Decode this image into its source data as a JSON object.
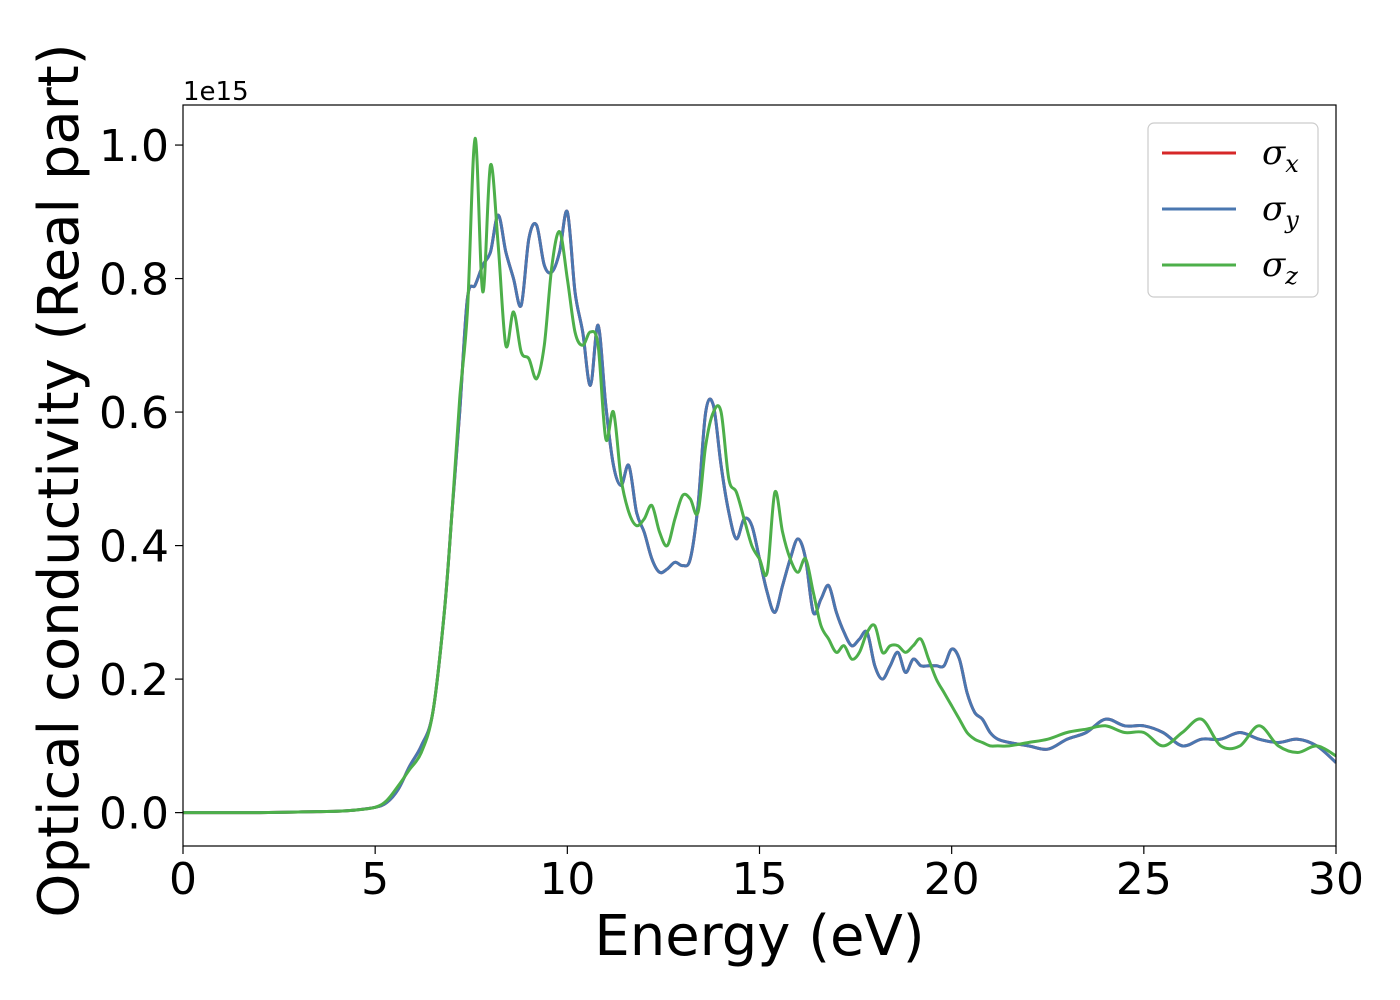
{
  "chart_data": {
    "type": "line",
    "title": "",
    "xlabel": "Energy (eV)",
    "ylabel": "Optical conductivity (Real part)",
    "y_offset_label": "1e15",
    "xlim": [
      0,
      30
    ],
    "ylim": [
      -0.05,
      1.06
    ],
    "xticks": [
      0,
      5,
      10,
      15,
      20,
      25,
      30
    ],
    "yticks": [
      0.0,
      0.2,
      0.4,
      0.6,
      0.8,
      1.0
    ],
    "xtick_labels": [
      "0",
      "5",
      "10",
      "15",
      "20",
      "25",
      "30"
    ],
    "ytick_labels": [
      "0.0",
      "0.2",
      "0.4",
      "0.6",
      "0.8",
      "1.0"
    ],
    "grid": false,
    "legend_position": "top-right",
    "series": [
      {
        "name": "σx",
        "symbol": "σ",
        "subscript": "x",
        "color": "#d62728",
        "x": [
          0,
          1,
          2,
          3,
          4,
          4.5,
          5,
          5.3,
          5.6,
          5.9,
          6.2,
          6.5,
          6.8,
          7.0,
          7.2,
          7.4,
          7.6,
          7.8,
          8.0,
          8.2,
          8.4,
          8.6,
          8.8,
          9.0,
          9.2,
          9.4,
          9.6,
          9.8,
          10.0,
          10.2,
          10.4,
          10.6,
          10.8,
          11.0,
          11.2,
          11.4,
          11.6,
          11.8,
          12.0,
          12.2,
          12.4,
          12.6,
          12.8,
          13.0,
          13.2,
          13.4,
          13.6,
          13.8,
          14.0,
          14.2,
          14.4,
          14.6,
          14.8,
          15.0,
          15.2,
          15.4,
          15.6,
          15.8,
          16.0,
          16.2,
          16.4,
          16.6,
          16.8,
          17.0,
          17.2,
          17.4,
          17.6,
          17.8,
          18.0,
          18.2,
          18.4,
          18.6,
          18.8,
          19.0,
          19.2,
          19.4,
          19.6,
          19.8,
          20.0,
          20.2,
          20.4,
          20.6,
          20.8,
          21.0,
          21.2,
          21.5,
          22.0,
          22.5,
          23.0,
          23.5,
          24.0,
          24.5,
          25.0,
          25.5,
          26.0,
          26.5,
          27.0,
          27.5,
          28.0,
          28.5,
          29.0,
          29.5,
          30.0
        ],
        "y": [
          0,
          0,
          0,
          0.001,
          0.002,
          0.004,
          0.008,
          0.015,
          0.035,
          0.07,
          0.1,
          0.15,
          0.3,
          0.45,
          0.6,
          0.77,
          0.79,
          0.82,
          0.84,
          0.895,
          0.84,
          0.8,
          0.76,
          0.86,
          0.88,
          0.82,
          0.81,
          0.84,
          0.9,
          0.78,
          0.72,
          0.64,
          0.73,
          0.61,
          0.52,
          0.49,
          0.52,
          0.45,
          0.42,
          0.38,
          0.36,
          0.365,
          0.375,
          0.37,
          0.38,
          0.46,
          0.6,
          0.61,
          0.52,
          0.45,
          0.41,
          0.44,
          0.43,
          0.38,
          0.33,
          0.3,
          0.34,
          0.38,
          0.41,
          0.38,
          0.3,
          0.32,
          0.34,
          0.3,
          0.27,
          0.25,
          0.26,
          0.27,
          0.22,
          0.2,
          0.22,
          0.24,
          0.21,
          0.23,
          0.22,
          0.22,
          0.22,
          0.22,
          0.245,
          0.23,
          0.18,
          0.15,
          0.14,
          0.12,
          0.11,
          0.105,
          0.1,
          0.095,
          0.11,
          0.12,
          0.14,
          0.13,
          0.13,
          0.12,
          0.1,
          0.11,
          0.11,
          0.12,
          0.11,
          0.105,
          0.11,
          0.1,
          0.075
        ]
      },
      {
        "name": "σy",
        "symbol": "σ",
        "subscript": "y",
        "color": "#4a77b0",
        "x": [
          0,
          1,
          2,
          3,
          4,
          4.5,
          5,
          5.3,
          5.6,
          5.9,
          6.2,
          6.5,
          6.8,
          7.0,
          7.2,
          7.4,
          7.6,
          7.8,
          8.0,
          8.2,
          8.4,
          8.6,
          8.8,
          9.0,
          9.2,
          9.4,
          9.6,
          9.8,
          10.0,
          10.2,
          10.4,
          10.6,
          10.8,
          11.0,
          11.2,
          11.4,
          11.6,
          11.8,
          12.0,
          12.2,
          12.4,
          12.6,
          12.8,
          13.0,
          13.2,
          13.4,
          13.6,
          13.8,
          14.0,
          14.2,
          14.4,
          14.6,
          14.8,
          15.0,
          15.2,
          15.4,
          15.6,
          15.8,
          16.0,
          16.2,
          16.4,
          16.6,
          16.8,
          17.0,
          17.2,
          17.4,
          17.6,
          17.8,
          18.0,
          18.2,
          18.4,
          18.6,
          18.8,
          19.0,
          19.2,
          19.4,
          19.6,
          19.8,
          20.0,
          20.2,
          20.4,
          20.6,
          20.8,
          21.0,
          21.2,
          21.5,
          22.0,
          22.5,
          23.0,
          23.5,
          24.0,
          24.5,
          25.0,
          25.5,
          26.0,
          26.5,
          27.0,
          27.5,
          28.0,
          28.5,
          29.0,
          29.5,
          30.0
        ],
        "y": [
          0,
          0,
          0,
          0.001,
          0.002,
          0.004,
          0.008,
          0.015,
          0.035,
          0.07,
          0.1,
          0.15,
          0.3,
          0.45,
          0.6,
          0.77,
          0.79,
          0.82,
          0.84,
          0.895,
          0.84,
          0.8,
          0.76,
          0.86,
          0.88,
          0.82,
          0.81,
          0.84,
          0.9,
          0.78,
          0.72,
          0.64,
          0.73,
          0.61,
          0.52,
          0.49,
          0.52,
          0.45,
          0.42,
          0.38,
          0.36,
          0.365,
          0.375,
          0.37,
          0.38,
          0.46,
          0.6,
          0.61,
          0.52,
          0.45,
          0.41,
          0.44,
          0.43,
          0.38,
          0.33,
          0.3,
          0.34,
          0.38,
          0.41,
          0.38,
          0.3,
          0.32,
          0.34,
          0.3,
          0.27,
          0.25,
          0.26,
          0.27,
          0.22,
          0.2,
          0.22,
          0.24,
          0.21,
          0.23,
          0.22,
          0.22,
          0.22,
          0.22,
          0.245,
          0.23,
          0.18,
          0.15,
          0.14,
          0.12,
          0.11,
          0.105,
          0.1,
          0.095,
          0.11,
          0.12,
          0.14,
          0.13,
          0.13,
          0.12,
          0.1,
          0.11,
          0.11,
          0.12,
          0.11,
          0.105,
          0.11,
          0.1,
          0.075
        ]
      },
      {
        "name": "σz",
        "symbol": "σ",
        "subscript": "z",
        "color": "#4daf4a",
        "x": [
          0,
          1,
          2,
          3,
          4,
          4.5,
          5,
          5.3,
          5.6,
          5.9,
          6.2,
          6.5,
          6.8,
          7.0,
          7.2,
          7.4,
          7.6,
          7.8,
          8.0,
          8.2,
          8.4,
          8.6,
          8.8,
          9.0,
          9.2,
          9.4,
          9.6,
          9.8,
          10.0,
          10.2,
          10.4,
          10.6,
          10.8,
          11.0,
          11.2,
          11.4,
          11.6,
          11.8,
          12.0,
          12.2,
          12.4,
          12.6,
          12.8,
          13.0,
          13.2,
          13.4,
          13.6,
          13.8,
          14.0,
          14.2,
          14.4,
          14.6,
          14.8,
          15.0,
          15.2,
          15.4,
          15.6,
          15.8,
          16.0,
          16.2,
          16.4,
          16.6,
          16.8,
          17.0,
          17.2,
          17.4,
          17.6,
          17.8,
          18.0,
          18.2,
          18.4,
          18.6,
          18.8,
          19.0,
          19.2,
          19.4,
          19.6,
          19.8,
          20.0,
          20.2,
          20.4,
          20.6,
          20.8,
          21.0,
          21.2,
          21.5,
          22.0,
          22.5,
          23.0,
          23.5,
          24.0,
          24.5,
          25.0,
          25.5,
          26.0,
          26.5,
          27.0,
          27.5,
          28.0,
          28.5,
          29.0,
          29.5,
          30.0
        ],
        "y": [
          0,
          0,
          0,
          0.001,
          0.002,
          0.004,
          0.008,
          0.018,
          0.04,
          0.065,
          0.09,
          0.15,
          0.3,
          0.45,
          0.62,
          0.75,
          1.01,
          0.78,
          0.97,
          0.85,
          0.7,
          0.75,
          0.69,
          0.68,
          0.65,
          0.7,
          0.82,
          0.87,
          0.8,
          0.72,
          0.7,
          0.72,
          0.7,
          0.56,
          0.6,
          0.5,
          0.45,
          0.43,
          0.44,
          0.46,
          0.42,
          0.4,
          0.44,
          0.475,
          0.47,
          0.45,
          0.55,
          0.6,
          0.6,
          0.5,
          0.48,
          0.44,
          0.4,
          0.38,
          0.36,
          0.48,
          0.42,
          0.38,
          0.36,
          0.38,
          0.33,
          0.28,
          0.26,
          0.24,
          0.25,
          0.23,
          0.24,
          0.27,
          0.28,
          0.24,
          0.25,
          0.25,
          0.24,
          0.25,
          0.26,
          0.23,
          0.2,
          0.18,
          0.16,
          0.14,
          0.12,
          0.11,
          0.105,
          0.1,
          0.1,
          0.1,
          0.105,
          0.11,
          0.12,
          0.125,
          0.13,
          0.12,
          0.12,
          0.1,
          0.12,
          0.14,
          0.1,
          0.1,
          0.13,
          0.1,
          0.09,
          0.1,
          0.085
        ]
      }
    ]
  }
}
